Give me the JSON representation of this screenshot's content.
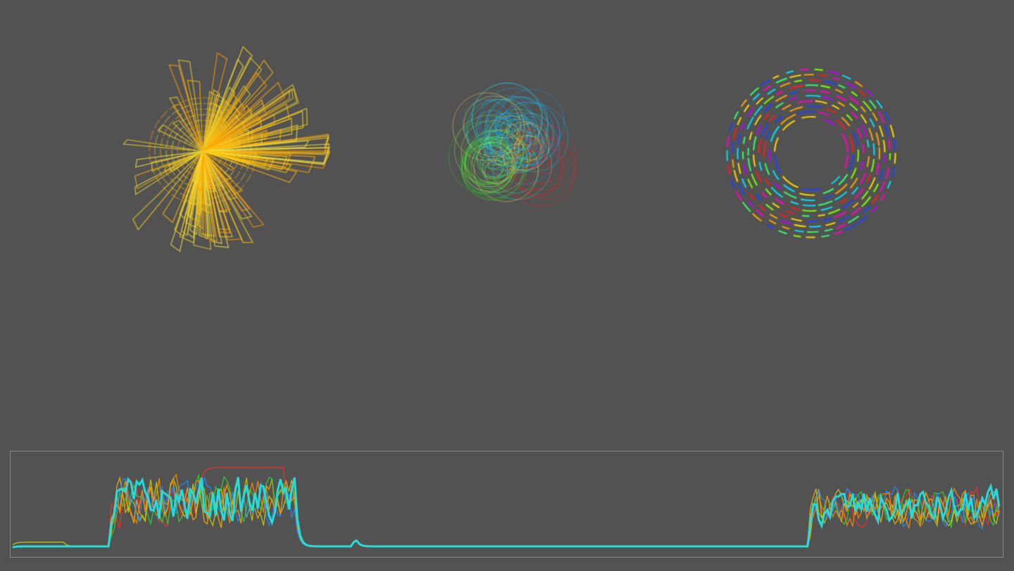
{
  "colors": {
    "background": "#525252",
    "panel_border": "#8a8a8a",
    "radial_palette": [
      "#ffd21a",
      "#ffb300",
      "#e6c72a",
      "#ff9a0a",
      "#f0e040"
    ],
    "bubble_palette": [
      "#00bfff",
      "#1fa0ff",
      "#22e6d2",
      "#7cff3c",
      "#ff2020",
      "#ffe14a",
      "#32cd32"
    ],
    "ring_palette": [
      "#ffd700",
      "#7cff00",
      "#00e0ff",
      "#1e40ff",
      "#ff1a1a",
      "#c000ff",
      "#ff00c8",
      "#32ff6e",
      "#ffa500"
    ],
    "timeline_series": [
      "#ff2a2a",
      "#ffb000",
      "#2ad82a",
      "#c8d20a",
      "#1e90ff",
      "#ff8c00",
      "#22e0e0"
    ]
  },
  "visualizations": [
    {
      "id": "radial-burst",
      "kind": "radial-spikes"
    },
    {
      "id": "bubble-cluster",
      "kind": "overlapping-circles"
    },
    {
      "id": "dashed-rings",
      "kind": "concentric-dashed-rings",
      "ring_count": 10
    }
  ],
  "timeline": {
    "series_count": 7,
    "highlight_series": 6
  }
}
